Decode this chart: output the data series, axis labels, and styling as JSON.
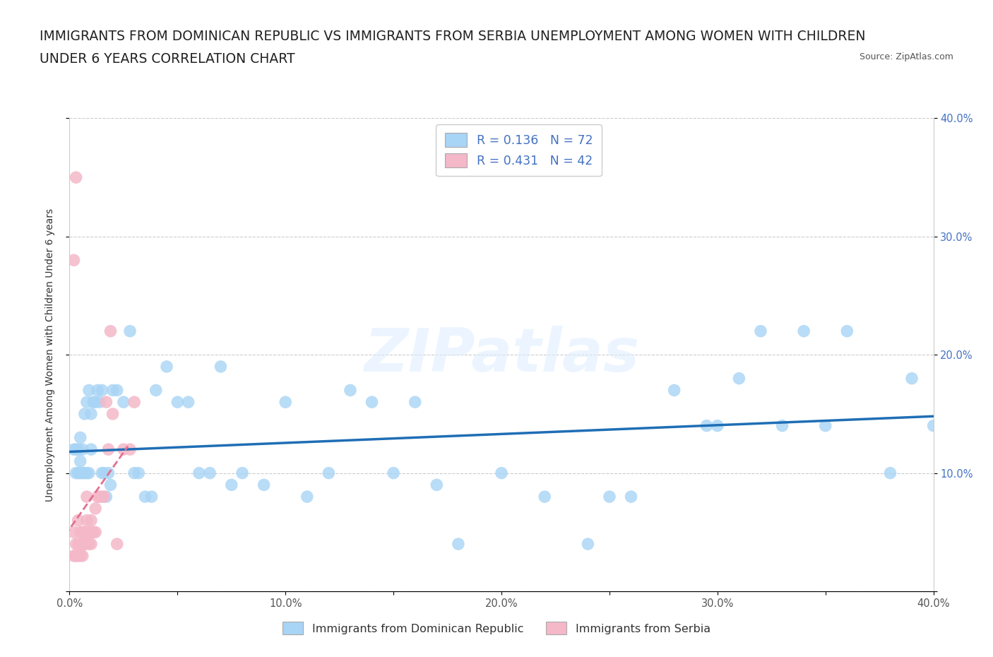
{
  "title_line1": "IMMIGRANTS FROM DOMINICAN REPUBLIC VS IMMIGRANTS FROM SERBIA UNEMPLOYMENT AMONG WOMEN WITH CHILDREN",
  "title_line2": "UNDER 6 YEARS CORRELATION CHART",
  "source": "Source: ZipAtlas.com",
  "ylabel": "Unemployment Among Women with Children Under 6 years",
  "xlim": [
    0.0,
    0.4
  ],
  "ylim": [
    0.0,
    0.4
  ],
  "xticks": [
    0.0,
    0.05,
    0.1,
    0.15,
    0.2,
    0.25,
    0.3,
    0.35,
    0.4
  ],
  "xticklabels": [
    "0.0%",
    "",
    "10.0%",
    "",
    "20.0%",
    "",
    "30.0%",
    "",
    "40.0%"
  ],
  "yticks": [
    0.0,
    0.1,
    0.2,
    0.3,
    0.4
  ],
  "right_yticklabels": [
    "",
    "10.0%",
    "20.0%",
    "30.0%",
    "40.0%"
  ],
  "legend1_label": "Immigrants from Dominican Republic",
  "legend2_label": "Immigrants from Serbia",
  "R1": 0.136,
  "N1": 72,
  "R2": 0.431,
  "N2": 42,
  "blue_color": "#a8d4f5",
  "pink_color": "#f4b8c8",
  "line_blue": "#1f6eb5",
  "line_pink": "#e07090",
  "watermark": "ZIPatlas",
  "title_fontsize": 13.5,
  "axis_label_fontsize": 10,
  "tick_fontsize": 10.5,
  "blue_x": [
    0.002,
    0.003,
    0.003,
    0.004,
    0.004,
    0.005,
    0.005,
    0.005,
    0.006,
    0.006,
    0.007,
    0.007,
    0.008,
    0.008,
    0.009,
    0.009,
    0.01,
    0.01,
    0.011,
    0.012,
    0.013,
    0.014,
    0.015,
    0.015,
    0.016,
    0.017,
    0.018,
    0.019,
    0.02,
    0.022,
    0.025,
    0.028,
    0.03,
    0.032,
    0.035,
    0.038,
    0.04,
    0.045,
    0.05,
    0.055,
    0.06,
    0.065,
    0.07,
    0.075,
    0.08,
    0.09,
    0.1,
    0.11,
    0.12,
    0.13,
    0.14,
    0.15,
    0.16,
    0.17,
    0.18,
    0.2,
    0.22,
    0.24,
    0.26,
    0.28,
    0.3,
    0.32,
    0.34,
    0.35,
    0.36,
    0.38,
    0.39,
    0.4,
    0.33,
    0.31,
    0.295,
    0.25
  ],
  "blue_y": [
    0.12,
    0.1,
    0.12,
    0.1,
    0.12,
    0.1,
    0.11,
    0.13,
    0.1,
    0.12,
    0.1,
    0.15,
    0.1,
    0.16,
    0.1,
    0.17,
    0.12,
    0.15,
    0.16,
    0.16,
    0.17,
    0.16,
    0.17,
    0.1,
    0.1,
    0.08,
    0.1,
    0.09,
    0.17,
    0.17,
    0.16,
    0.22,
    0.1,
    0.1,
    0.08,
    0.08,
    0.17,
    0.19,
    0.16,
    0.16,
    0.1,
    0.1,
    0.19,
    0.09,
    0.1,
    0.09,
    0.16,
    0.08,
    0.1,
    0.17,
    0.16,
    0.1,
    0.16,
    0.09,
    0.04,
    0.1,
    0.08,
    0.04,
    0.08,
    0.17,
    0.14,
    0.22,
    0.22,
    0.14,
    0.22,
    0.1,
    0.18,
    0.14,
    0.14,
    0.18,
    0.14,
    0.08
  ],
  "pink_x": [
    0.002,
    0.002,
    0.003,
    0.003,
    0.004,
    0.004,
    0.005,
    0.005,
    0.006,
    0.006,
    0.007,
    0.007,
    0.008,
    0.008,
    0.009,
    0.009,
    0.01,
    0.01,
    0.011,
    0.012,
    0.013,
    0.014,
    0.015,
    0.016,
    0.017,
    0.018,
    0.019,
    0.02,
    0.022,
    0.025,
    0.028,
    0.03,
    0.003,
    0.004,
    0.005,
    0.006,
    0.007,
    0.008,
    0.01,
    0.012,
    0.002,
    0.003
  ],
  "pink_y": [
    0.05,
    0.03,
    0.04,
    0.03,
    0.06,
    0.04,
    0.05,
    0.04,
    0.03,
    0.05,
    0.04,
    0.05,
    0.06,
    0.08,
    0.04,
    0.05,
    0.05,
    0.04,
    0.05,
    0.05,
    0.08,
    0.08,
    0.08,
    0.08,
    0.16,
    0.12,
    0.22,
    0.15,
    0.04,
    0.12,
    0.12,
    0.16,
    0.03,
    0.03,
    0.03,
    0.04,
    0.04,
    0.05,
    0.06,
    0.07,
    0.28,
    0.35
  ],
  "pink_line_x_end": 0.022,
  "blue_line_y_start": 0.118,
  "blue_line_y_end": 0.148
}
